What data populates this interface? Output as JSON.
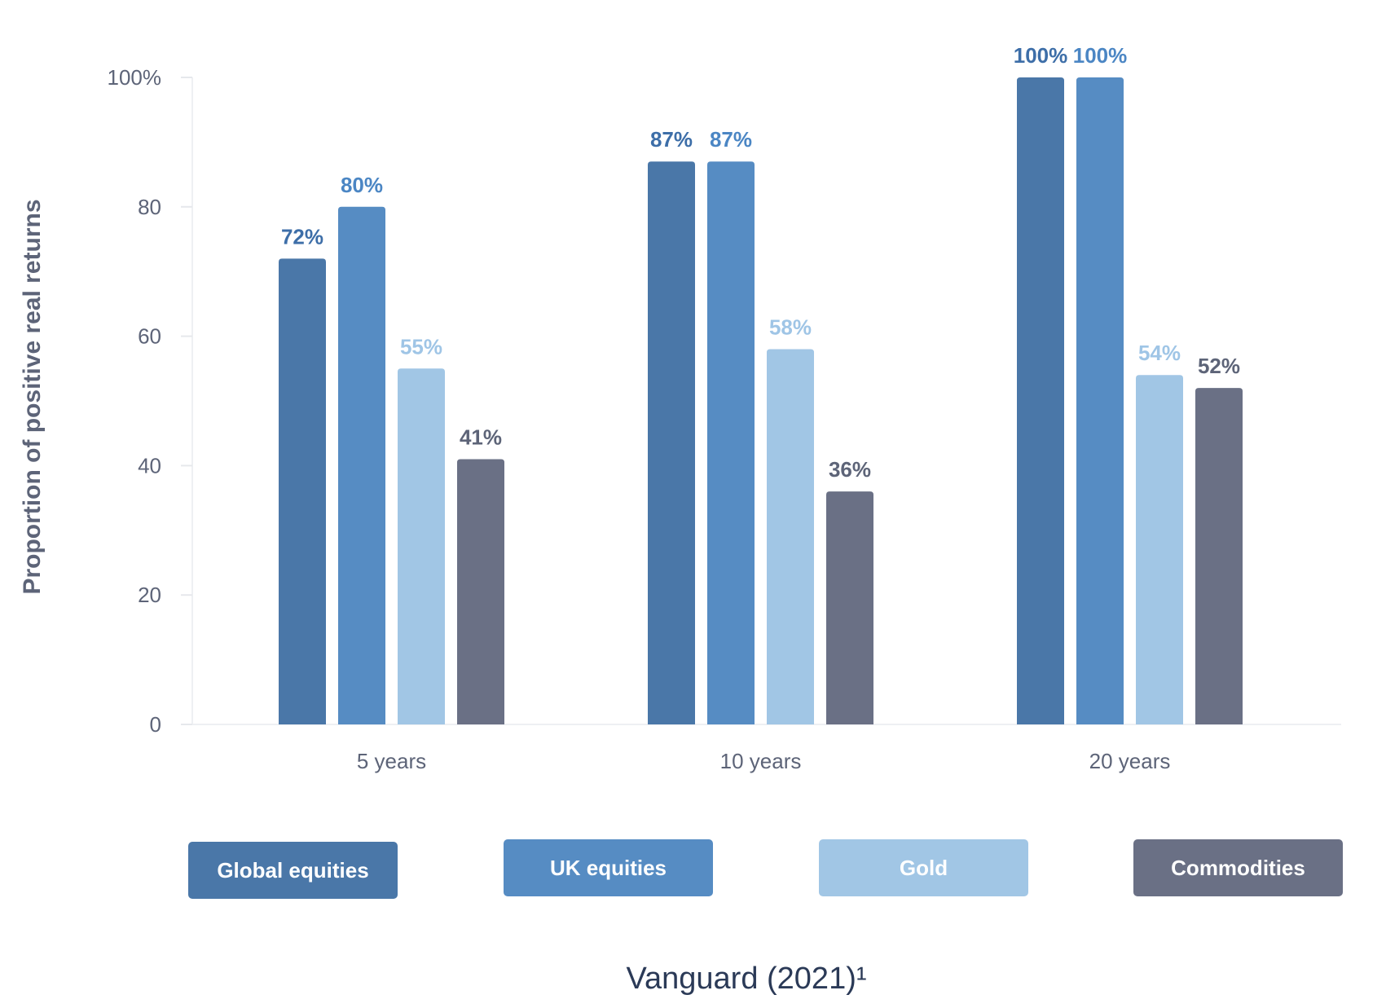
{
  "chart_data": {
    "type": "bar",
    "categories": [
      "5 years",
      "10 years",
      "20 years"
    ],
    "series": [
      {
        "name": "Global equities",
        "color": "#4a77a8",
        "label_color": "#3d6ea8",
        "values": [
          72,
          87,
          100
        ],
        "labels": [
          "72%",
          "87%",
          "100%"
        ]
      },
      {
        "name": "UK equities",
        "color": "#568cc3",
        "label_color": "#4b86c4",
        "values": [
          80,
          87,
          100
        ],
        "labels": [
          "80%",
          "87%",
          "100%"
        ]
      },
      {
        "name": "Gold",
        "color": "#a1c6e5",
        "label_color": "#9fc5e6",
        "values": [
          55,
          58,
          54
        ],
        "labels": [
          "55%",
          "58%",
          "54%"
        ]
      },
      {
        "name": "Commodities",
        "color": "#6a7085",
        "label_color": "#5d6478",
        "values": [
          41,
          36,
          52
        ],
        "labels": [
          "41%",
          "36%",
          "52%"
        ]
      }
    ],
    "ylabel": "Proportion of positive real returns",
    "xlabel": "",
    "ylim": [
      0,
      100
    ],
    "yticks": [
      0,
      20,
      40,
      60,
      80,
      100
    ],
    "ytick_labels": [
      "0",
      "20",
      "40",
      "60",
      "80",
      "100%"
    ],
    "legend_placement": "bottom",
    "grid": false,
    "source": "Vanguard (2021)¹"
  }
}
